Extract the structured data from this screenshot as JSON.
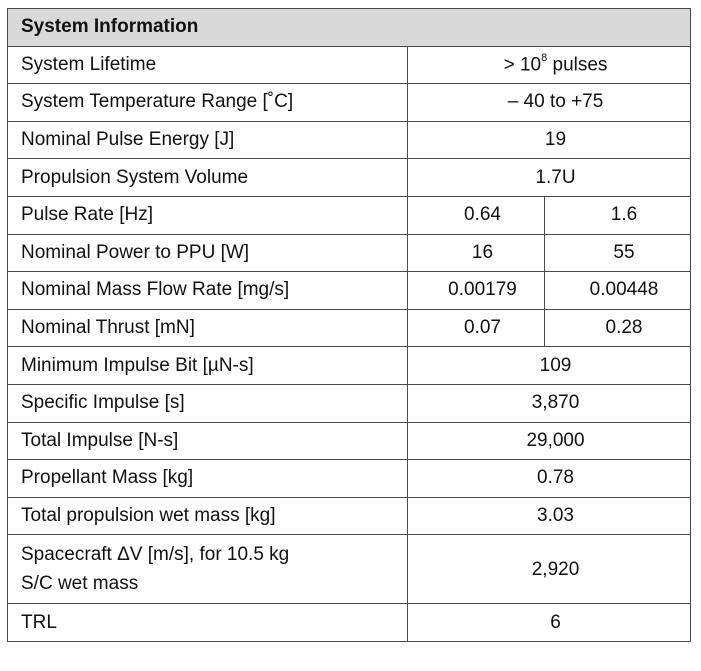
{
  "table": {
    "header": "System Information",
    "rows": [
      {
        "label": "System Lifetime",
        "value_prefix": "> 10",
        "value_sup": "8",
        "value_suffix": " pulses"
      },
      {
        "label": "System Temperature Range [˚C]",
        "value": "– 40 to +75"
      },
      {
        "label": "Nominal Pulse Energy [J]",
        "value": "19"
      },
      {
        "label": "Propulsion System Volume",
        "value": "1.7U"
      },
      {
        "label": "Pulse Rate [Hz]",
        "values": [
          "0.64",
          "1.6"
        ]
      },
      {
        "label": "Nominal Power to PPU [W]",
        "values": [
          "16",
          "55"
        ]
      },
      {
        "label": "Nominal Mass Flow Rate [mg/s]",
        "values": [
          "0.00179",
          "0.00448"
        ]
      },
      {
        "label": "Nominal Thrust [mN]",
        "values": [
          "0.07",
          "0.28"
        ]
      },
      {
        "label": "Minimum Impulse Bit [µN-s]",
        "value": "109"
      },
      {
        "label": "Specific Impulse [s]",
        "value": "3,870"
      },
      {
        "label": "Total Impulse [N-s]",
        "value": "29,000"
      },
      {
        "label": "Propellant Mass [kg]",
        "value": "0.78"
      },
      {
        "label": "Total propulsion wet mass [kg]",
        "value": "3.03"
      },
      {
        "label": "Spacecraft ΔV [m/s], for 10.5 kg S/C wet mass",
        "value": "2,920"
      },
      {
        "label": "TRL",
        "value": "6"
      }
    ]
  }
}
